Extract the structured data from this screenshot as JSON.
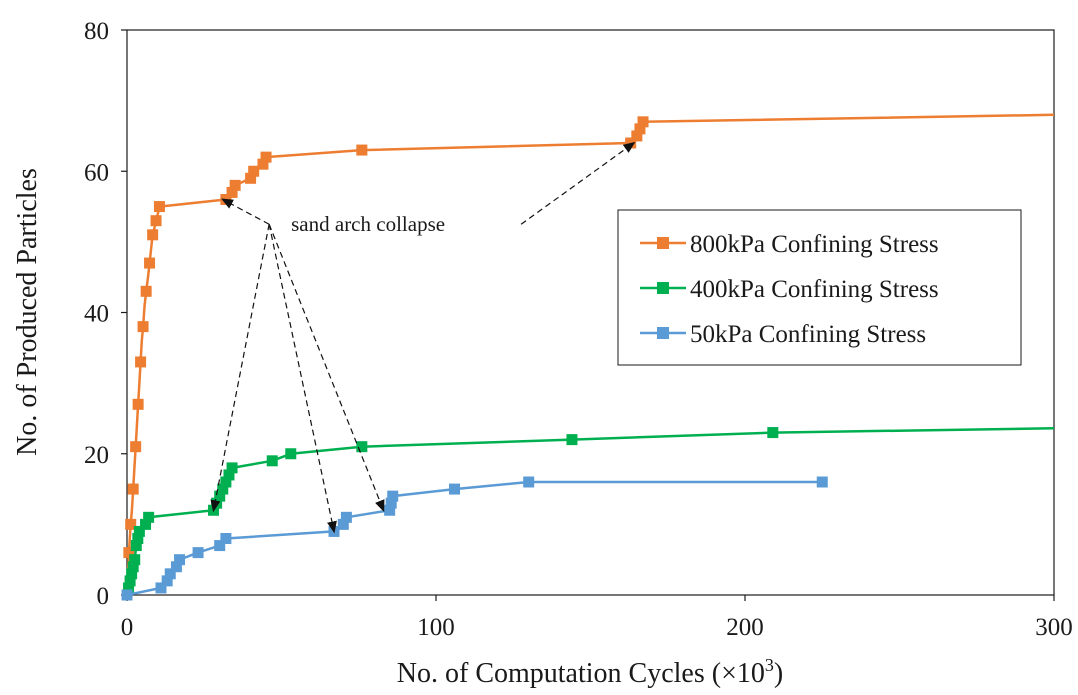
{
  "chart_data": {
    "type": "line",
    "xlabel": "No. of Computation Cycles (×10³)",
    "xlabel_main": "No. of Computation Cycles (×10",
    "xlabel_sup": "3",
    "xlabel_end": ")",
    "ylabel": "No. of Produced Particles",
    "xlim": [
      0,
      300
    ],
    "ylim": [
      0,
      80
    ],
    "xticks": [
      0,
      100,
      200,
      300
    ],
    "yticks": [
      0,
      20,
      40,
      60,
      80
    ],
    "xtick_labels": [
      "0",
      "100",
      "200",
      "300"
    ],
    "ytick_labels": [
      "0",
      "20",
      "40",
      "60",
      "80"
    ],
    "grid": false,
    "legend_position": "right",
    "series": [
      {
        "name": "800kPa Confining Stress",
        "color": "#ED7D31",
        "marker": "square",
        "points": [
          [
            0,
            0
          ],
          [
            0.3,
            3
          ],
          [
            0.6,
            6
          ],
          [
            0.9,
            8
          ],
          [
            1.2,
            10
          ],
          [
            1.6,
            12
          ],
          [
            2.0,
            15
          ],
          [
            2.4,
            18
          ],
          [
            2.8,
            21
          ],
          [
            3.2,
            24
          ],
          [
            3.6,
            27
          ],
          [
            4.0,
            30
          ],
          [
            4.4,
            33
          ],
          [
            4.8,
            36
          ],
          [
            5.2,
            38
          ],
          [
            5.7,
            41
          ],
          [
            6.2,
            43
          ],
          [
            6.8,
            45
          ],
          [
            7.3,
            47
          ],
          [
            7.8,
            49
          ],
          [
            8.3,
            51
          ],
          [
            8.9,
            52
          ],
          [
            9.4,
            53
          ],
          [
            10.0,
            54
          ],
          [
            10.5,
            55
          ],
          [
            32,
            56
          ],
          [
            34,
            57
          ],
          [
            35,
            58
          ],
          [
            40,
            59
          ],
          [
            41,
            60
          ],
          [
            44,
            61
          ],
          [
            45,
            62
          ],
          [
            76,
            63
          ],
          [
            163,
            64
          ],
          [
            165,
            65
          ],
          [
            166,
            66
          ],
          [
            167,
            67
          ],
          [
            300,
            68
          ]
        ],
        "marker_x": [
          0,
          0.6,
          1.2,
          2.0,
          2.8,
          3.6,
          4.4,
          5.2,
          6.2,
          7.3,
          8.3,
          9.4,
          10.5,
          32,
          34,
          35,
          40,
          41,
          44,
          45,
          76,
          163,
          165,
          166,
          167
        ]
      },
      {
        "name": "400kPa Confining Stress",
        "color": "#00B050",
        "marker": "square",
        "points": [
          [
            0,
            0
          ],
          [
            0.5,
            1
          ],
          [
            1.0,
            2
          ],
          [
            1.5,
            3
          ],
          [
            2.0,
            4
          ],
          [
            2.5,
            5
          ],
          [
            3.0,
            7
          ],
          [
            3.5,
            8
          ],
          [
            4.0,
            9
          ],
          [
            6.0,
            10
          ],
          [
            7.0,
            11
          ],
          [
            28,
            12
          ],
          [
            29,
            13
          ],
          [
            30,
            14
          ],
          [
            31,
            15
          ],
          [
            32,
            16
          ],
          [
            33,
            17
          ],
          [
            34,
            18
          ],
          [
            47,
            19
          ],
          [
            53,
            20
          ],
          [
            76,
            21
          ],
          [
            144,
            22
          ],
          [
            209,
            23
          ],
          [
            300,
            23.6
          ]
        ],
        "marker_x": [
          0,
          0.5,
          1.0,
          1.5,
          2.0,
          2.5,
          3.0,
          3.5,
          4.0,
          6.0,
          7.0,
          28,
          29,
          30,
          31,
          32,
          33,
          34,
          47,
          53,
          76,
          144,
          209
        ]
      },
      {
        "name": "50kPa Confining Stress",
        "color": "#5B9BD5",
        "marker": "square",
        "points": [
          [
            0,
            0
          ],
          [
            11,
            1
          ],
          [
            13,
            2
          ],
          [
            14,
            3
          ],
          [
            16,
            4
          ],
          [
            17,
            5
          ],
          [
            23,
            6
          ],
          [
            30,
            7
          ],
          [
            32,
            8
          ],
          [
            67,
            9
          ],
          [
            70,
            10
          ],
          [
            71,
            11
          ],
          [
            85,
            12
          ],
          [
            85.5,
            13
          ],
          [
            86,
            14
          ],
          [
            106,
            15
          ],
          [
            130,
            16
          ],
          [
            225,
            16
          ]
        ],
        "marker_x": [
          0,
          11,
          13,
          14,
          16,
          17,
          23,
          30,
          32,
          67,
          70,
          71,
          85,
          85.5,
          86,
          106,
          130,
          225
        ]
      }
    ],
    "annotations": [
      {
        "text": "sand arch collapse",
        "text_anchor": [
          46,
          52.5
        ],
        "targets": [
          [
            31,
            56
          ],
          [
            28,
            12
          ],
          [
            67,
            9
          ],
          [
            83,
            12
          ],
          [
            164,
            64
          ]
        ]
      }
    ]
  }
}
